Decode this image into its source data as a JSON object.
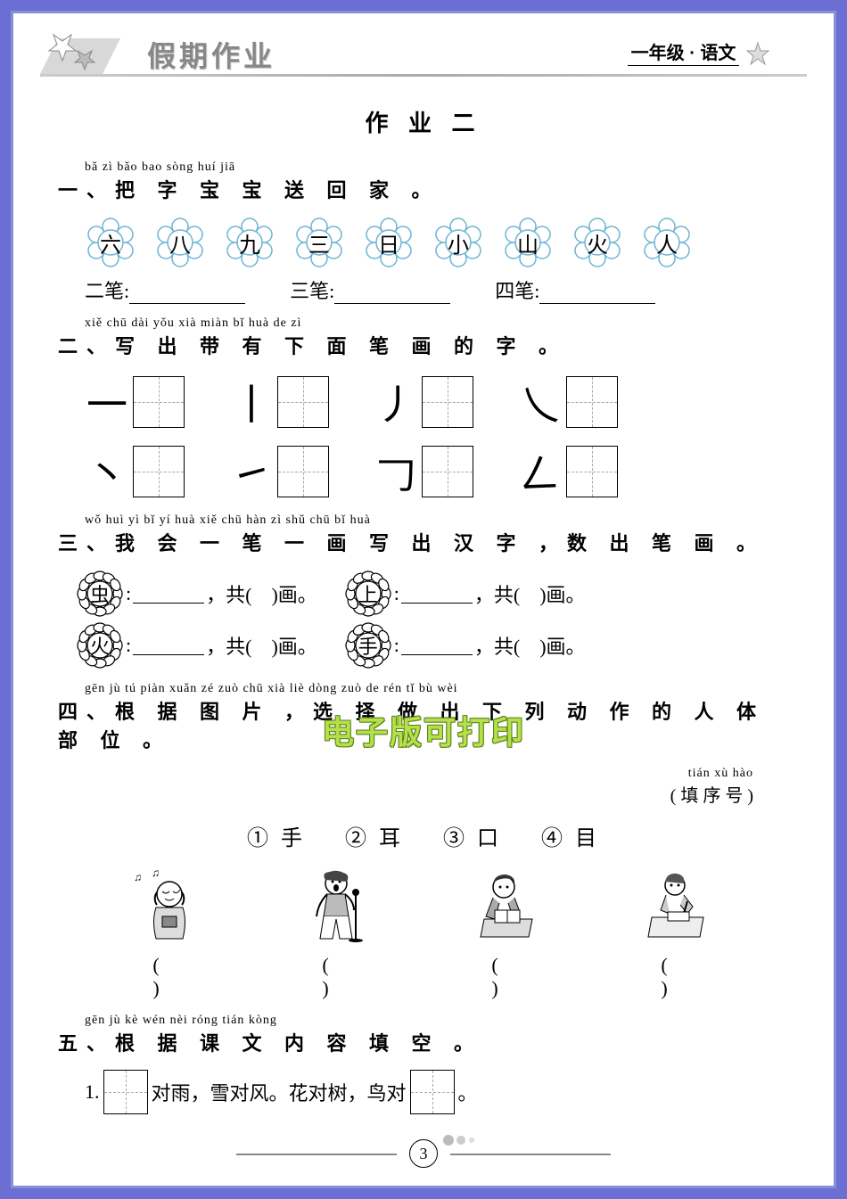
{
  "header": {
    "title": "假期作业",
    "grade": "一年级",
    "subject": "语文"
  },
  "page_title": "作 业 二",
  "q1": {
    "pinyin": "bǎ  zì  bǎo bao sòng  huí   jiā",
    "heading": "一、把 字 宝 宝 送  回 家 。",
    "flowers": [
      "六",
      "八",
      "九",
      "三",
      "日",
      "小",
      "山",
      "火",
      "人"
    ],
    "flower_stroke": "#6db4d4",
    "answers": [
      {
        "label": "二笔:"
      },
      {
        "label": "三笔:"
      },
      {
        "label": "四笔:"
      }
    ]
  },
  "q2": {
    "pinyin": "xiě  chū  dài  yǒu  xià  miàn  bǐ  huà  de   zì",
    "heading": "二、写 出 带 有 下 面 笔 画 的 字 。",
    "row1": [
      "一",
      "丨",
      "丿",
      "乀"
    ],
    "row2": [
      "丶",
      "㇀",
      "𠃌",
      "𠃋"
    ]
  },
  "q3": {
    "pinyin": "wǒ huì  yì   bǐ   yí  huà xiě chū hàn  zì    shǔ chū  bǐ  huà",
    "heading": "三、我 会 一 笔 一 画 写 出 汉 字 ，数 出 笔 画 。",
    "items": [
      {
        "char": "虫"
      },
      {
        "char": "上"
      },
      {
        "char": "火"
      },
      {
        "char": "手"
      }
    ],
    "template": {
      "sep": ":",
      "gong": "，共(",
      "hua": ")画。"
    }
  },
  "q4": {
    "pinyin": "gēn  jù   tú  piàn    xuǎn zé zuò chū xià  liè dòng zuò de  rén  tǐ   bù  wèi",
    "heading": "四、根 据 图 片 ，选 择 做 出 下 列 动 作 的 人 体 部 位 。",
    "hint_pinyin": "tián xù hào",
    "hint": "( 填 序 号 )",
    "options": [
      {
        "num": "①",
        "char": "手"
      },
      {
        "num": "②",
        "char": "耳"
      },
      {
        "num": "③",
        "char": "口"
      },
      {
        "num": "④",
        "char": "目"
      }
    ],
    "brackets": [
      "(    )",
      "(    )",
      "(    )",
      "(    )"
    ]
  },
  "q5": {
    "pinyin": "gēn  jù   kè  wén nèi  róng tián kòng",
    "heading": "五、根 据 课 文 内 容 填 空 。",
    "line1_num": "1.",
    "line1_a": "对雨，雪对风。花对树，鸟对",
    "line1_end": "。"
  },
  "watermark": "电子版可打印",
  "page_number": "3",
  "colors": {
    "bg": "#6b6fd4",
    "frame_border": "#8a8ed8",
    "watermark": "#b4e04a"
  }
}
